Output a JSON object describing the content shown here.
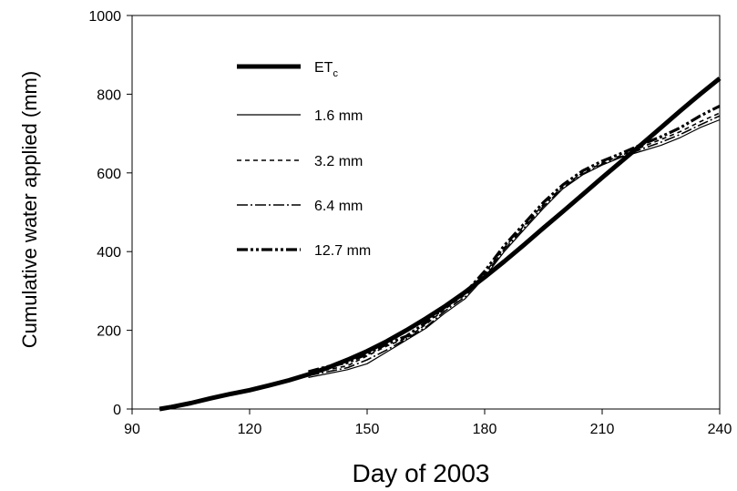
{
  "chart_data": {
    "type": "line",
    "title": "",
    "xlabel": "Day of 2003",
    "ylabel": "Cumulative water applied (mm)",
    "xlim": [
      90,
      240
    ],
    "ylim": [
      0,
      1000
    ],
    "xticks": [
      90,
      120,
      150,
      180,
      210,
      240
    ],
    "yticks": [
      0,
      200,
      400,
      600,
      800,
      1000
    ],
    "grid": false,
    "legend_position": "top-left",
    "series": [
      {
        "name": "ET",
        "name_sub": "c",
        "style": "thick-solid",
        "x": [
          97,
          100,
          105,
          110,
          115,
          120,
          125,
          130,
          135,
          140,
          145,
          150,
          155,
          160,
          165,
          170,
          175,
          180,
          185,
          190,
          195,
          200,
          205,
          210,
          215,
          220,
          225,
          230,
          235,
          240
        ],
        "y": [
          0,
          5,
          15,
          27,
          38,
          48,
          60,
          73,
          88,
          105,
          125,
          147,
          172,
          200,
          230,
          262,
          297,
          335,
          375,
          417,
          460,
          502,
          545,
          588,
          630,
          672,
          715,
          758,
          800,
          840
        ]
      },
      {
        "name": "1.6 mm",
        "style": "thin-solid",
        "x": [
          135,
          140,
          145,
          150,
          155,
          160,
          165,
          170,
          175,
          180,
          185,
          190,
          195,
          200,
          205,
          210,
          215,
          220,
          225,
          230,
          235,
          240
        ],
        "y": [
          80,
          90,
          100,
          115,
          145,
          175,
          205,
          245,
          280,
          335,
          400,
          455,
          510,
          560,
          595,
          620,
          640,
          655,
          670,
          690,
          715,
          735
        ]
      },
      {
        "name": "3.2 mm",
        "style": "dashed",
        "x": [
          135,
          140,
          145,
          150,
          155,
          160,
          165,
          170,
          175,
          180,
          185,
          190,
          195,
          200,
          205,
          210,
          215,
          220,
          225,
          230,
          235,
          240
        ],
        "y": [
          90,
          100,
          110,
          135,
          160,
          180,
          215,
          255,
          290,
          345,
          410,
          465,
          520,
          565,
          600,
          625,
          645,
          665,
          685,
          705,
          730,
          752
        ]
      },
      {
        "name": "6.4 mm",
        "style": "dash-dot",
        "x": [
          135,
          140,
          145,
          150,
          155,
          160,
          165,
          170,
          175,
          180,
          185,
          190,
          195,
          200,
          205,
          210,
          215,
          220,
          225,
          230,
          235,
          240
        ],
        "y": [
          85,
          95,
          105,
          125,
          150,
          178,
          208,
          250,
          285,
          340,
          405,
          460,
          515,
          562,
          597,
          622,
          642,
          660,
          678,
          698,
          722,
          745
        ]
      },
      {
        "name": "12.7 mm",
        "style": "thick-dash-dot-dot",
        "x": [
          135,
          140,
          145,
          150,
          155,
          160,
          165,
          170,
          175,
          180,
          185,
          190,
          195,
          200,
          205,
          210,
          215,
          220,
          225,
          230,
          235,
          240
        ],
        "y": [
          95,
          108,
          118,
          140,
          165,
          185,
          220,
          260,
          295,
          350,
          415,
          470,
          525,
          570,
          605,
          630,
          650,
          672,
          692,
          715,
          745,
          770
        ]
      }
    ]
  }
}
